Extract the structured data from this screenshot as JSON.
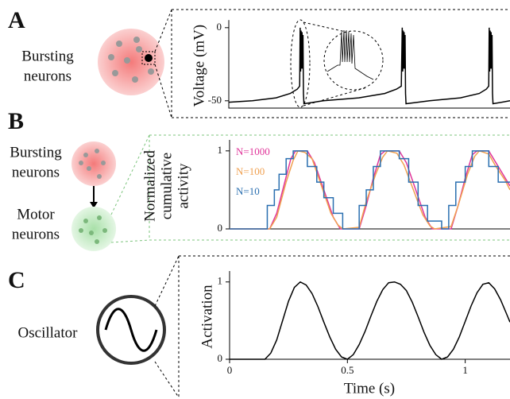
{
  "panels": {
    "letters": [
      "A",
      "B",
      "C"
    ],
    "a_text": [
      "Bursting",
      "neurons"
    ],
    "b_top_text": [
      "Bursting",
      "neurons"
    ],
    "b_bottom_text": [
      "Motor",
      "neurons"
    ],
    "c_text": "Oscillator"
  },
  "chart_data": [
    {
      "type": "line",
      "ylabel": [
        "Voltage (mV)"
      ],
      "xlim": [
        0,
        1.19
      ],
      "ylim": [
        -55,
        3
      ],
      "yticks": [
        0,
        -50
      ],
      "series": [
        {
          "color": "#000000",
          "x": [
            0,
            0.1,
            0.2,
            0.26,
            0.29,
            0.3,
            0.302,
            0.304,
            0.306,
            0.308,
            0.31,
            0.312,
            0.314,
            0.316,
            0.318,
            0.4,
            0.55,
            0.66,
            0.71,
            0.73,
            0.734,
            0.736,
            0.738,
            0.74,
            0.742,
            0.744,
            0.746,
            0.748,
            0.75,
            0.85,
            0.98,
            1.06,
            1.09,
            1.1,
            1.102,
            1.104,
            1.106,
            1.108,
            1.11,
            1.112,
            1.114,
            1.116,
            1.118,
            1.19
          ],
          "values": [
            -51,
            -50,
            -48,
            -45,
            -42,
            -40,
            0,
            -30,
            -2,
            -28,
            -3,
            -28,
            -5,
            -45,
            -52,
            -50,
            -48,
            -45,
            -42,
            -40,
            0,
            -30,
            -2,
            -28,
            -3,
            -28,
            -5,
            -45,
            -52,
            -50,
            -48,
            -45,
            -42,
            -40,
            0,
            -30,
            -2,
            -28,
            -3,
            -28,
            -5,
            -45,
            -52,
            -50
          ]
        }
      ]
    },
    {
      "type": "line",
      "ylabel": [
        "Normalized",
        "cumulative",
        "activity"
      ],
      "xlim": [
        0,
        1.19
      ],
      "ylim": [
        0,
        1.1
      ],
      "yticks": [
        0,
        1
      ],
      "series": [
        {
          "name": "N=1000",
          "color": "#e0359a",
          "x": [
            0,
            0.17,
            0.2,
            0.23,
            0.26,
            0.28,
            0.33,
            0.36,
            0.4,
            0.44,
            0.47,
            0.55,
            0.58,
            0.61,
            0.64,
            0.66,
            0.72,
            0.75,
            0.79,
            0.83,
            0.86,
            0.94,
            0.97,
            1.0,
            1.03,
            1.05,
            1.1,
            1.13,
            1.16,
            1.19
          ],
          "values": [
            0,
            0,
            0.2,
            0.55,
            0.9,
            1,
            1,
            0.85,
            0.5,
            0.15,
            0,
            0,
            0.3,
            0.65,
            0.95,
            1,
            1,
            0.85,
            0.5,
            0.15,
            0,
            0,
            0.3,
            0.65,
            0.95,
            1,
            1,
            0.85,
            0.7,
            0.55
          ]
        },
        {
          "name": "N=100",
          "color": "#f0a050",
          "x": [
            0,
            0.17,
            0.2,
            0.24,
            0.27,
            0.29,
            0.32,
            0.35,
            0.39,
            0.43,
            0.46,
            0.48,
            0.55,
            0.58,
            0.62,
            0.65,
            0.67,
            0.71,
            0.74,
            0.78,
            0.82,
            0.85,
            0.87,
            0.94,
            0.97,
            1.01,
            1.04,
            1.06,
            1.1,
            1.13,
            1.17,
            1.19
          ],
          "values": [
            0,
            0,
            0.15,
            0.6,
            0.88,
            1,
            0.98,
            0.9,
            0.55,
            0.2,
            0.05,
            0,
            0.02,
            0.35,
            0.7,
            0.92,
            1,
            0.97,
            0.82,
            0.5,
            0.18,
            0.04,
            0,
            0.03,
            0.3,
            0.7,
            0.93,
            1,
            0.96,
            0.8,
            0.62,
            0.5
          ]
        },
        {
          "name": "N=10",
          "color": "#2a6fb0",
          "x": [
            0,
            0.16,
            0.16,
            0.19,
            0.19,
            0.21,
            0.21,
            0.24,
            0.24,
            0.27,
            0.27,
            0.33,
            0.33,
            0.37,
            0.37,
            0.4,
            0.4,
            0.44,
            0.44,
            0.48,
            0.48,
            0.55,
            0.55,
            0.58,
            0.58,
            0.61,
            0.61,
            0.64,
            0.64,
            0.72,
            0.72,
            0.76,
            0.76,
            0.8,
            0.8,
            0.84,
            0.84,
            0.9,
            0.9,
            0.93,
            0.93,
            0.96,
            0.96,
            1.0,
            1.0,
            1.03,
            1.03,
            1.1,
            1.1,
            1.14,
            1.14,
            1.19
          ],
          "values": [
            0,
            0,
            0.3,
            0.3,
            0.5,
            0.5,
            0.7,
            0.7,
            0.9,
            0.9,
            1,
            1,
            0.8,
            0.8,
            0.6,
            0.6,
            0.4,
            0.4,
            0.2,
            0.2,
            0,
            0,
            0.3,
            0.3,
            0.5,
            0.5,
            0.8,
            0.8,
            1,
            1,
            0.9,
            0.9,
            0.6,
            0.6,
            0.3,
            0.3,
            0.1,
            0.1,
            0,
            0,
            0.3,
            0.3,
            0.6,
            0.6,
            0.8,
            0.8,
            1,
            1,
            0.8,
            0.8,
            0.6,
            0.6
          ]
        }
      ]
    },
    {
      "type": "line",
      "ylabel": [
        "Activation"
      ],
      "xlabel": "Time (s)",
      "xlim": [
        0,
        1.19
      ],
      "ylim": [
        0,
        1.1
      ],
      "yticks": [
        0,
        1
      ],
      "xticks": [
        0,
        0.5,
        1
      ],
      "series": [
        {
          "color": "#000000",
          "x": [
            0,
            0.15,
            0.175,
            0.2,
            0.225,
            0.25,
            0.275,
            0.3,
            0.325,
            0.35,
            0.375,
            0.4,
            0.425,
            0.45,
            0.475,
            0.5,
            0.525,
            0.55,
            0.575,
            0.6,
            0.625,
            0.65,
            0.675,
            0.7,
            0.725,
            0.75,
            0.775,
            0.8,
            0.825,
            0.85,
            0.875,
            0.9,
            0.925,
            0.95,
            0.975,
            1.0,
            1.025,
            1.05,
            1.075,
            1.1,
            1.125,
            1.15,
            1.175,
            1.19
          ],
          "values": [
            0,
            0,
            0.08,
            0.25,
            0.5,
            0.75,
            0.93,
            1,
            0.96,
            0.85,
            0.68,
            0.48,
            0.29,
            0.13,
            0.03,
            0,
            0.06,
            0.19,
            0.36,
            0.56,
            0.75,
            0.9,
            0.99,
            1,
            0.97,
            0.89,
            0.74,
            0.55,
            0.35,
            0.18,
            0.06,
            0,
            0.03,
            0.13,
            0.29,
            0.49,
            0.69,
            0.86,
            0.97,
            0.99,
            0.91,
            0.77,
            0.59,
            0.48
          ]
        }
      ]
    }
  ]
}
